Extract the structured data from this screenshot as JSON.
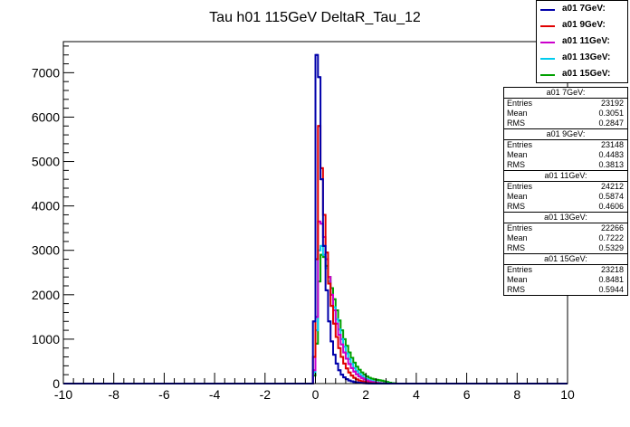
{
  "chart_data": {
    "type": "histogram",
    "title": "Tau h01 115GeV DeltaR_Tau_12",
    "xlim": [
      -10,
      10
    ],
    "ylim": [
      0,
      7700
    ],
    "x_ticks": [
      -10,
      -8,
      -6,
      -4,
      -2,
      0,
      2,
      4,
      6,
      8,
      10
    ],
    "y_ticks": [
      0,
      1000,
      2000,
      3000,
      4000,
      5000,
      6000,
      7000
    ],
    "x_tick_labels": [
      "-10",
      "-8",
      "-6",
      "-4",
      "-2",
      "0",
      "2",
      "4",
      "6",
      "8",
      "10"
    ],
    "y_tick_labels": [
      "0",
      "1000",
      "2000",
      "3000",
      "4000",
      "5000",
      "6000",
      "7000"
    ],
    "bin_width": 0.1,
    "grid": false,
    "legend_position": "top-right",
    "series": [
      {
        "name": "a01 7GeV:",
        "color": "#0000aa",
        "bins_start": -0.1,
        "values": [
          1400,
          7400,
          6900,
          4600,
          3100,
          2100,
          1400,
          950,
          650,
          450,
          300,
          200,
          140,
          100,
          70,
          50,
          35,
          25,
          18,
          12,
          8,
          5,
          3,
          2,
          1
        ]
      },
      {
        "name": "a01 9GeV:",
        "color": "#e00000",
        "bins_start": -0.1,
        "values": [
          600,
          2800,
          5800,
          4850,
          3800,
          2950,
          2250,
          1750,
          1350,
          1050,
          800,
          600,
          450,
          340,
          250,
          180,
          130,
          95,
          70,
          50,
          35,
          25,
          15,
          10,
          6,
          3,
          2
        ]
      },
      {
        "name": "a01 11GeV:",
        "color": "#cc00cc",
        "bins_start": -0.1,
        "values": [
          300,
          1500,
          3650,
          3600,
          3300,
          2800,
          2400,
          2000,
          1650,
          1350,
          1100,
          880,
          700,
          560,
          440,
          350,
          270,
          210,
          160,
          125,
          95,
          70,
          50,
          35,
          25,
          15,
          10,
          5,
          3
        ]
      },
      {
        "name": "a01 13GeV:",
        "color": "#00ccee",
        "bins_start": -0.1,
        "values": [
          250,
          1200,
          3000,
          3100,
          2900,
          2600,
          2300,
          2000,
          1720,
          1450,
          1220,
          1000,
          830,
          680,
          550,
          440,
          350,
          280,
          220,
          170,
          130,
          100,
          75,
          55,
          40,
          28,
          18,
          10,
          5,
          3
        ]
      },
      {
        "name": "a01 15GeV:",
        "color": "#00a000",
        "bins_start": -0.1,
        "values": [
          180,
          900,
          2300,
          2900,
          2850,
          2650,
          2400,
          2150,
          1900,
          1650,
          1420,
          1200,
          1000,
          850,
          700,
          580,
          470,
          380,
          310,
          250,
          200,
          160,
          130,
          110,
          95,
          85,
          75,
          65,
          50,
          35,
          20,
          10,
          5
        ]
      }
    ]
  },
  "stats": [
    {
      "title": "a01 7GeV:",
      "entries_label": "Entries",
      "entries": "23192",
      "mean_label": "Mean",
      "mean": "0.3051",
      "rms_label": "RMS",
      "rms": "0.2847"
    },
    {
      "title": "a01 9GeV:",
      "entries_label": "Entries",
      "entries": "23148",
      "mean_label": "Mean",
      "mean": "0.4483",
      "rms_label": "RMS",
      "rms": "0.3813"
    },
    {
      "title": "a01 11GeV:",
      "entries_label": "Entries",
      "entries": "24212",
      "mean_label": "Mean",
      "mean": "0.5874",
      "rms_label": "RMS",
      "rms": "0.4606"
    },
    {
      "title": "a01 13GeV:",
      "entries_label": "Entries",
      "entries": "22266",
      "mean_label": "Mean",
      "mean": "0.7222",
      "rms_label": "RMS",
      "rms": "0.5329"
    },
    {
      "title": "a01 15GeV:",
      "entries_label": "Entries",
      "entries": "23218",
      "mean_label": "Mean",
      "mean": "0.8481",
      "rms_label": "RMS",
      "rms": "0.5944"
    }
  ]
}
